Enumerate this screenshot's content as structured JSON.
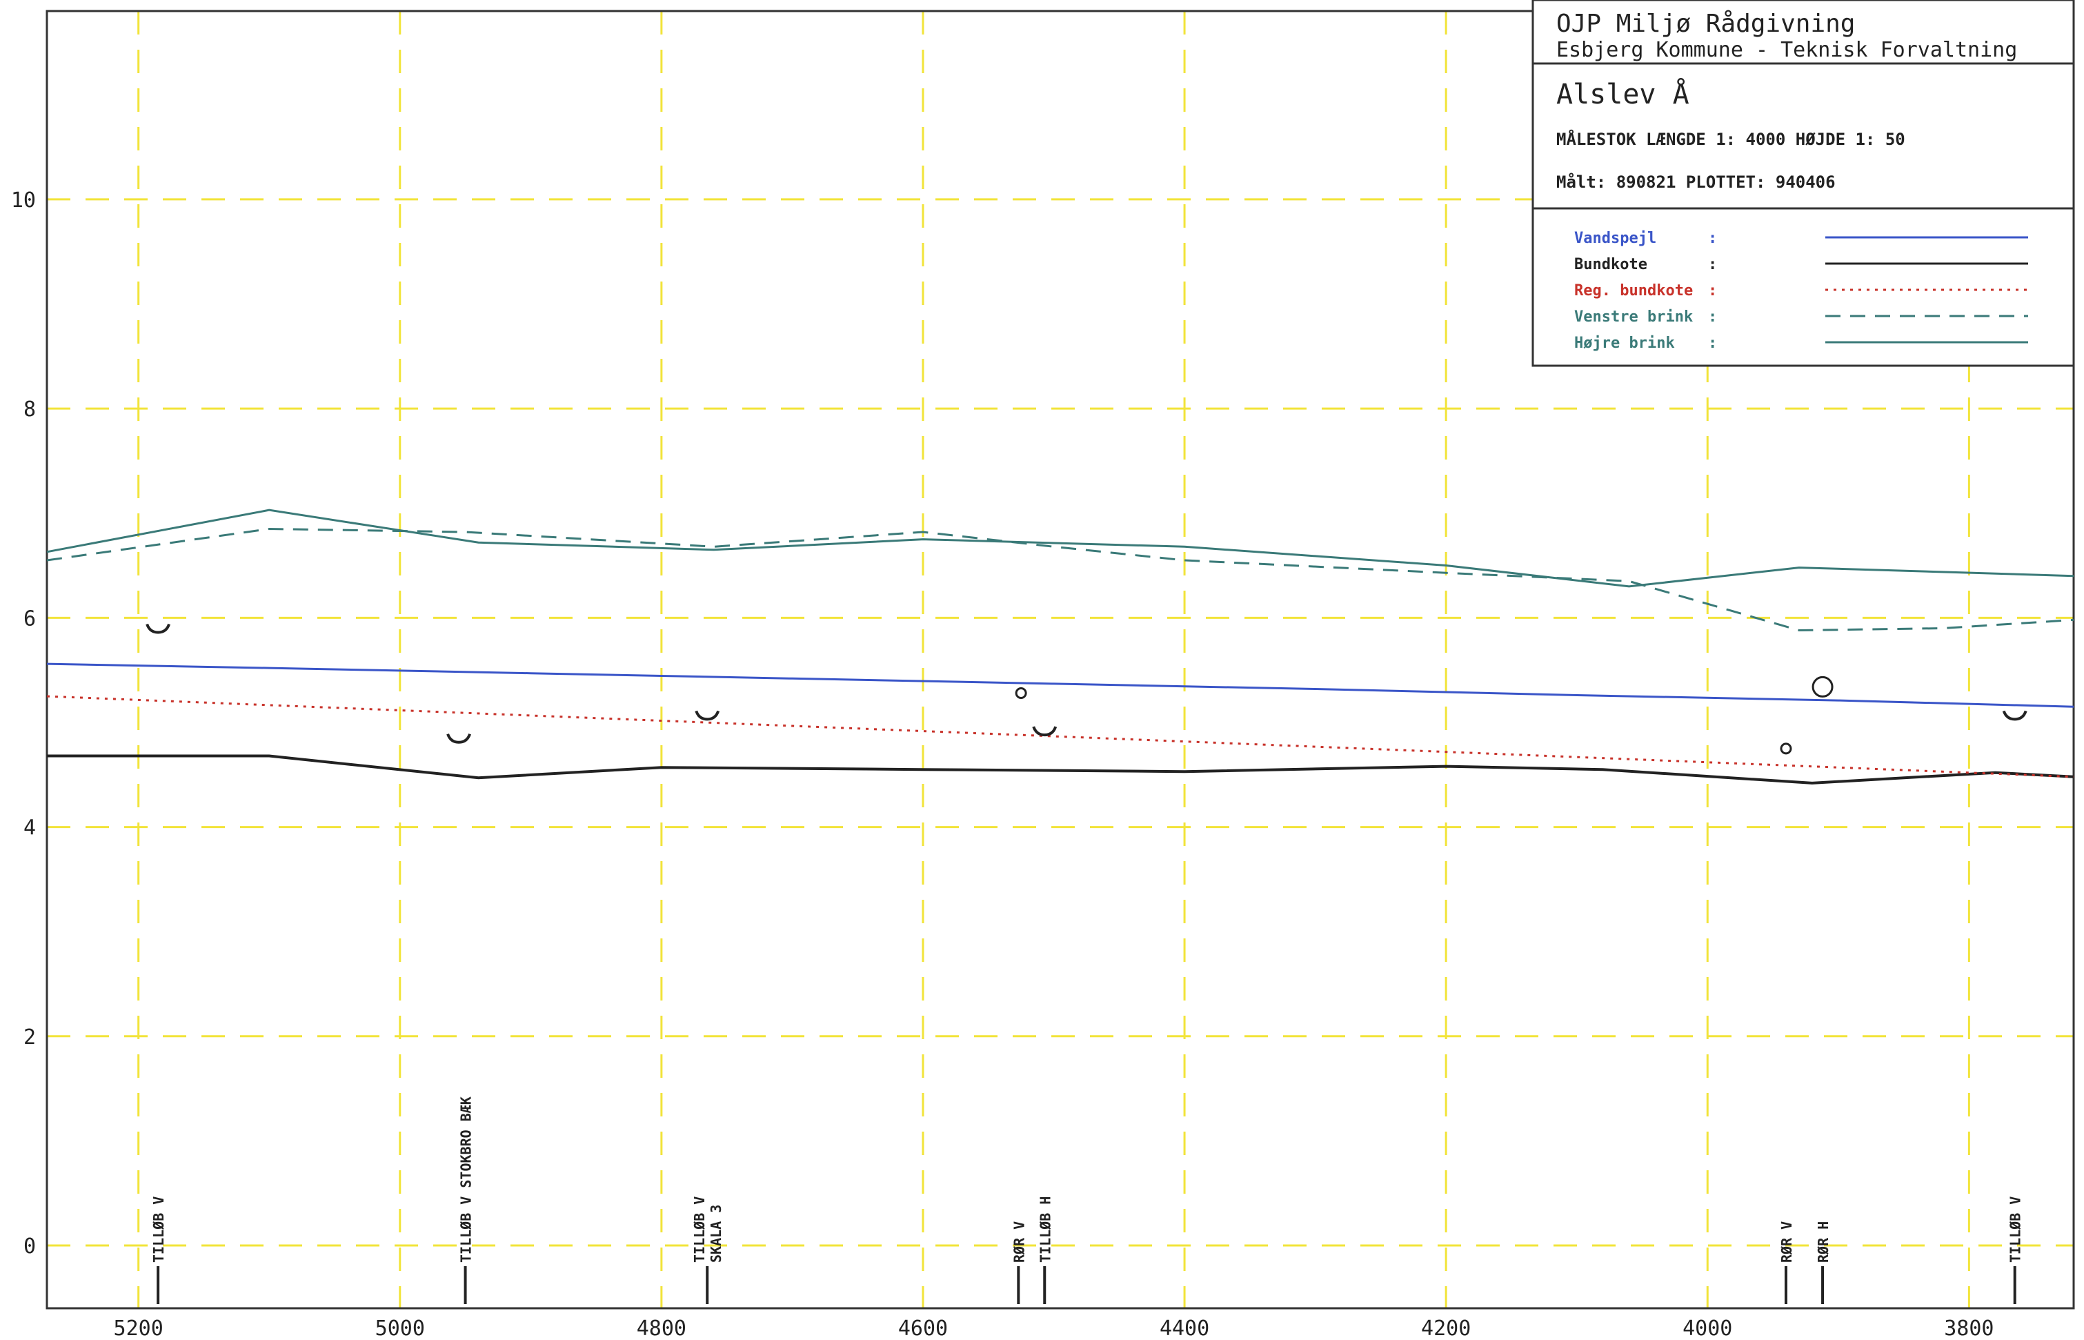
{
  "title_block": {
    "company": "OJP Miljø Rådgivning",
    "client": "Esbjerg Kommune - Teknisk Forvaltning",
    "river": "Alslev Å",
    "scale_line": "MÅLESTOK  LÆNGDE 1: 4000  HØJDE 1: 50",
    "dates_line": "Målt: 890821  PLOTTET: 940406"
  },
  "legend": [
    {
      "label": "Vandspejl",
      "colon": ":",
      "color": "#3a55c8",
      "style": "solid",
      "series": "vandspejl"
    },
    {
      "label": "Bundkote",
      "colon": ":",
      "color": "#222222",
      "style": "solid",
      "series": "bundkote"
    },
    {
      "label": "Reg. bundkote",
      "colon": ":",
      "color": "#c8322a",
      "style": "dotted",
      "series": "reg_bundkote"
    },
    {
      "label": "Venstre brink",
      "colon": ":",
      "color": "#3a7a78",
      "style": "dashed",
      "series": "venstre_brink"
    },
    {
      "label": "Højre brink",
      "colon": ":",
      "color": "#3a7a78",
      "style": "solid",
      "series": "hojre_brink"
    }
  ],
  "chart_data": {
    "type": "line",
    "x_reversed": true,
    "xlim": [
      5270,
      3720
    ],
    "ylim": [
      -0.6,
      11.8
    ],
    "xticks": [
      5200,
      5000,
      4800,
      4600,
      4400,
      4200,
      4000,
      3800
    ],
    "xtick_labels": [
      "5200",
      "5000",
      "4800",
      "4600",
      "4400",
      "4200",
      "4000",
      "3800"
    ],
    "yticks": [
      0,
      2,
      4,
      6,
      8,
      10
    ],
    "ytick_labels": [
      "0",
      "2",
      "4",
      "6",
      "8",
      "10"
    ],
    "grid": true,
    "grid_color": "#f2e43a",
    "series": [
      {
        "id": "vandspejl",
        "color": "#3a55c8",
        "style": "solid",
        "x": [
          5270,
          5100,
          4900,
          4700,
          4500,
          4300,
          4100,
          3900,
          3720
        ],
        "y": [
          5.56,
          5.52,
          5.47,
          5.42,
          5.37,
          5.32,
          5.26,
          5.21,
          5.15
        ]
      },
      {
        "id": "bundkote",
        "color": "#222222",
        "style": "solid",
        "x": [
          5270,
          5100,
          4940,
          4800,
          4600,
          4400,
          4200,
          4080,
          3920,
          3780,
          3720
        ],
        "y": [
          4.68,
          4.68,
          4.47,
          4.57,
          4.55,
          4.53,
          4.58,
          4.55,
          4.42,
          4.52,
          4.48
        ]
      },
      {
        "id": "reg_bundkote",
        "color": "#c8322a",
        "style": "dotted",
        "x": [
          5270,
          3720
        ],
        "y": [
          5.25,
          4.48
        ]
      },
      {
        "id": "venstre_brink",
        "color": "#3a7a78",
        "style": "dashed",
        "x": [
          5270,
          5100,
          4950,
          4760,
          4600,
          4500,
          4400,
          4200,
          4060,
          3930,
          3820,
          3720
        ],
        "y": [
          6.55,
          6.85,
          6.82,
          6.68,
          6.82,
          6.68,
          6.55,
          6.43,
          6.35,
          5.88,
          5.9,
          5.98
        ]
      },
      {
        "id": "hojre_brink",
        "color": "#3a7a78",
        "style": "solid",
        "x": [
          5270,
          5100,
          4940,
          4760,
          4600,
          4400,
          4200,
          4060,
          3930,
          3720
        ],
        "y": [
          6.63,
          7.03,
          6.72,
          6.65,
          6.75,
          6.68,
          6.5,
          6.3,
          6.48,
          6.4
        ]
      }
    ],
    "markers": [
      {
        "shape": "arc",
        "x": 5185,
        "y": 5.9
      },
      {
        "shape": "arc",
        "x": 4955,
        "y": 4.85
      },
      {
        "shape": "arc",
        "x": 4765,
        "y": 5.07
      },
      {
        "shape": "arc",
        "x": 4507,
        "y": 4.92
      },
      {
        "shape": "arc",
        "x": 3765,
        "y": 5.07
      },
      {
        "shape": "circle",
        "x": 4525,
        "y": 5.28,
        "size": "small"
      },
      {
        "shape": "circle",
        "x": 3940,
        "y": 4.75,
        "size": "small"
      },
      {
        "shape": "circle",
        "x": 3912,
        "y": 5.34,
        "size": "large"
      }
    ],
    "annotations": [
      {
        "x": 5185,
        "lines": [
          "TILLØB V"
        ]
      },
      {
        "x": 4950,
        "lines": [
          "TILLØB V STOKBRO BÆK"
        ]
      },
      {
        "x": 4765,
        "lines": [
          "TILLØB V",
          "SKALA 3"
        ]
      },
      {
        "x": 4527,
        "lines": [
          "RØR V"
        ]
      },
      {
        "x": 4507,
        "lines": [
          "TILLØB H"
        ]
      },
      {
        "x": 3940,
        "lines": [
          "RØR V"
        ]
      },
      {
        "x": 3912,
        "lines": [
          "RØR H"
        ]
      },
      {
        "x": 3765,
        "lines": [
          "TILLØB V"
        ]
      }
    ]
  }
}
